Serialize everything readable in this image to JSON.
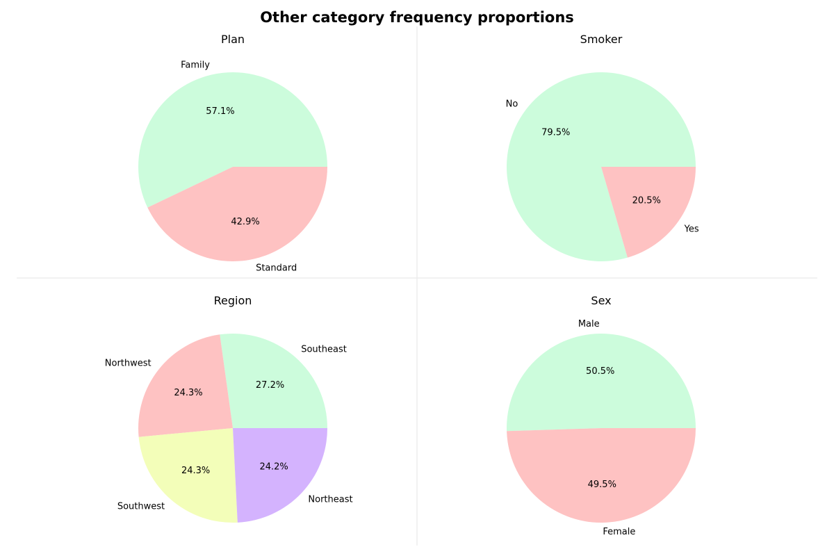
{
  "figure_title": "Other category frequency proportions",
  "chart_data": [
    {
      "type": "pie",
      "title": "Plan",
      "start_angle": 0,
      "direction": "counterclockwise",
      "slices": [
        {
          "label": "Family",
          "value": 57.1,
          "pct_label": "57.1%",
          "color": "#ccfcdc"
        },
        {
          "label": "Standard",
          "value": 42.9,
          "pct_label": "42.9%",
          "color": "#fec2c2"
        }
      ]
    },
    {
      "type": "pie",
      "title": "Smoker",
      "start_angle": 0,
      "direction": "counterclockwise",
      "slices": [
        {
          "label": "No",
          "value": 79.5,
          "pct_label": "79.5%",
          "color": "#ccfcdc"
        },
        {
          "label": "Yes",
          "value": 20.5,
          "pct_label": "20.5%",
          "color": "#fec2c2"
        }
      ]
    },
    {
      "type": "pie",
      "title": "Region",
      "start_angle": 0,
      "direction": "counterclockwise",
      "slices": [
        {
          "label": "Southeast",
          "value": 27.2,
          "pct_label": "27.2%",
          "color": "#ccfcdc"
        },
        {
          "label": "Northwest",
          "value": 24.3,
          "pct_label": "24.3%",
          "color": "#fec2c2"
        },
        {
          "label": "Southwest",
          "value": 24.3,
          "pct_label": "24.3%",
          "color": "#f3feb9"
        },
        {
          "label": "Northeast",
          "value": 24.2,
          "pct_label": "24.2%",
          "color": "#d4b3fe"
        }
      ]
    },
    {
      "type": "pie",
      "title": "Sex",
      "start_angle": 0,
      "direction": "counterclockwise",
      "slices": [
        {
          "label": "Male",
          "value": 50.5,
          "pct_label": "50.5%",
          "color": "#ccfcdc"
        },
        {
          "label": "Female",
          "value": 49.5,
          "pct_label": "49.5%",
          "color": "#fec2c2"
        }
      ]
    }
  ]
}
